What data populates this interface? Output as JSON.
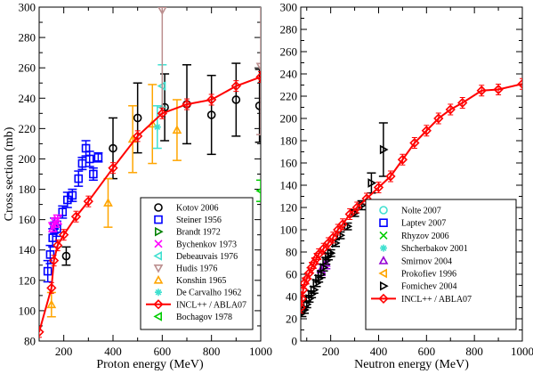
{
  "chart_data": [
    {
      "type": "scatter",
      "xlabel": "Proton energy (MeV)",
      "ylabel": "Cross section (mb)",
      "xlim": [
        100,
        1000
      ],
      "ylim": [
        80,
        300
      ],
      "xticks": [
        200,
        400,
        600,
        800,
        1000
      ],
      "yticks": [
        80,
        100,
        120,
        140,
        160,
        180,
        200,
        220,
        240,
        260,
        280,
        300
      ],
      "legend_placement": "bottom-right",
      "series": [
        {
          "name": "Kotov 2006",
          "marker": "circle",
          "color": "#000000",
          "points": [
            [
              210,
              136,
              6
            ],
            [
              400,
              207,
              20
            ],
            [
              500,
              227,
              23
            ],
            [
              610,
              234,
              22
            ],
            [
              700,
              236,
              26
            ],
            [
              800,
              229,
              26
            ],
            [
              900,
              239,
              24
            ],
            [
              995,
              235,
              24
            ]
          ]
        },
        {
          "name": "Steiner 1956",
          "marker": "square",
          "color": "#0000ff",
          "points": [
            [
              135,
              126,
              7
            ],
            [
              145,
              137,
              6
            ],
            [
              155,
              148,
              6
            ],
            [
              162,
              156,
              5
            ],
            [
              172,
              154,
              5
            ],
            [
              195,
              165,
              4
            ],
            [
              215,
              173,
              5
            ],
            [
              235,
              176,
              4
            ],
            [
              260,
              187,
              5
            ],
            [
              275,
              197,
              4
            ],
            [
              290,
              207,
              5
            ],
            [
              305,
              200,
              5
            ],
            [
              320,
              190,
              4
            ],
            [
              340,
              201,
              3
            ]
          ]
        },
        {
          "name": "Brandt 1972",
          "marker": "triangle-right",
          "color": "#008000",
          "points": []
        },
        {
          "name": "Bychenkov 1973",
          "marker": "x",
          "color": "#ff00ff",
          "points": [
            [
              155,
              155,
              3
            ],
            [
              165,
              158,
              3
            ],
            [
              175,
              160,
              3
            ]
          ]
        },
        {
          "name": "Debeauvais 1976",
          "marker": "triangle-left",
          "color": "#40e0d0",
          "points": [
            [
              600,
              248,
              14
            ]
          ]
        },
        {
          "name": "Hudis 1976",
          "marker": "triangle-down",
          "color": "#bc8f8f",
          "points": [
            [
              600,
              298,
              68
            ],
            [
              1000,
              261,
              45
            ]
          ]
        },
        {
          "name": "Konshin 1965",
          "marker": "triangle-up",
          "color": "#ffa500",
          "points": [
            [
              150,
              104,
              8
            ],
            [
              380,
              171,
              16
            ],
            [
              480,
              213,
              22
            ],
            [
              560,
              223,
              26
            ],
            [
              660,
              219,
              20
            ]
          ]
        },
        {
          "name": "De Carvalho 1962",
          "marker": "star",
          "color": "#40e0d0",
          "points": [
            [
              580,
              221,
              14
            ]
          ]
        },
        {
          "name": "INCL++ / ABLA07",
          "marker": "diamond-line",
          "color": "#ff0000",
          "points": [
            [
              100,
              86
            ],
            [
              150,
              115
            ],
            [
              160,
              133
            ],
            [
              175,
              143
            ],
            [
              200,
              150
            ],
            [
              250,
              162
            ],
            [
              300,
              172
            ],
            [
              400,
              194
            ],
            [
              500,
              215
            ],
            [
              600,
              230
            ],
            [
              700,
              236
            ],
            [
              800,
              239
            ],
            [
              900,
              248
            ],
            [
              1000,
              254
            ]
          ]
        },
        {
          "name": "Bochagov 1978",
          "marker": "triangle-left",
          "color": "#00cc00",
          "points": [
            [
              1000,
              179,
              7
            ]
          ]
        }
      ]
    },
    {
      "type": "scatter",
      "xlabel": "Neutron energy (MeV)",
      "ylabel": "",
      "xlim": [
        75,
        1000
      ],
      "ylim": [
        0,
        300
      ],
      "xticks": [
        200,
        400,
        600,
        800,
        1000
      ],
      "yticks": [
        0,
        20,
        40,
        60,
        80,
        100,
        120,
        140,
        160,
        180,
        200,
        220,
        240,
        260,
        280,
        300
      ],
      "legend_placement": "bottom-right",
      "series": [
        {
          "name": "Nolte 2007",
          "marker": "circle",
          "color": "#40e0d0",
          "points": []
        },
        {
          "name": "Laptev 2007",
          "marker": "square",
          "color": "#0000ff",
          "points": []
        },
        {
          "name": "Rhyzov 2006",
          "marker": "x",
          "color": "#00cc00",
          "points": []
        },
        {
          "name": "Shcherbakov 2001",
          "marker": "star",
          "color": "#40e0d0",
          "points": []
        },
        {
          "name": "Smirnov 2004",
          "marker": "triangle-up",
          "color": "#9400d3",
          "points": [
            [
              160,
              64,
              5
            ],
            [
              180,
              70,
              5
            ]
          ]
        },
        {
          "name": "Prokofiev 1996",
          "marker": "triangle-left",
          "color": "#ffa500",
          "points": []
        },
        {
          "name": "Fomichev 2004",
          "marker": "triangle-right",
          "color": "#000000",
          "points": [
            [
              80,
              25,
              3
            ],
            [
              90,
              28,
              3
            ],
            [
              100,
              33,
              3
            ],
            [
              110,
              38,
              3
            ],
            [
              120,
              42,
              3
            ],
            [
              130,
              46,
              3
            ],
            [
              140,
              52,
              3
            ],
            [
              150,
              56,
              3
            ],
            [
              160,
              60,
              3
            ],
            [
              170,
              66,
              3
            ],
            [
              180,
              72,
              3
            ],
            [
              190,
              76,
              3
            ],
            [
              200,
              79,
              3
            ],
            [
              220,
              88,
              3
            ],
            [
              240,
              95,
              3
            ],
            [
              270,
              103,
              3
            ],
            [
              300,
              115,
              3
            ],
            [
              330,
              122,
              4
            ],
            [
              370,
              142,
              9
            ],
            [
              420,
              172,
              24
            ]
          ]
        },
        {
          "name": "INCL++ / ABLA07",
          "marker": "diamond-line",
          "color": "#ff0000",
          "points": [
            [
              75,
              30
            ],
            [
              80,
              38
            ],
            [
              85,
              46
            ],
            [
              90,
              52
            ],
            [
              100,
              56
            ],
            [
              110,
              61
            ],
            [
              120,
              66
            ],
            [
              130,
              70
            ],
            [
              140,
              74
            ],
            [
              150,
              78
            ],
            [
              170,
              83
            ],
            [
              190,
              88
            ],
            [
              210,
              93
            ],
            [
              230,
              100
            ],
            [
              250,
              105
            ],
            [
              280,
              114
            ],
            [
              310,
              120
            ],
            [
              350,
              128
            ],
            [
              400,
              138
            ],
            [
              450,
              148
            ],
            [
              500,
              163
            ],
            [
              550,
              178
            ],
            [
              600,
              189
            ],
            [
              650,
              200
            ],
            [
              700,
              208
            ],
            [
              750,
              214
            ],
            [
              830,
              225
            ],
            [
              900,
              226
            ],
            [
              1000,
              231
            ]
          ]
        }
      ]
    }
  ]
}
